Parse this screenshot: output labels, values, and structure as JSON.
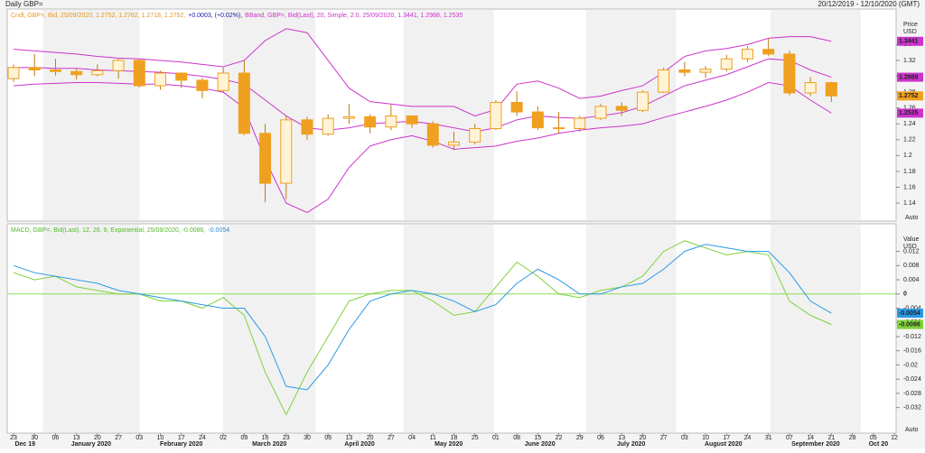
{
  "header": {
    "title": "Daily GBP=",
    "range": "20/12/2019 - 12/10/2020 (GMT)"
  },
  "chart_data": [
    {
      "type": "candlestick",
      "legend": [
        {
          "text": "Cndl, GBP=, Bid, 25/09/2020, 1.2752, 1.2762, 1.2718, 1.2752,",
          "color": "#e8961a"
        },
        {
          "text": "+0.0003, (+0.02%),",
          "color": "#1a1aa6"
        },
        {
          "text": "BBand, GBP=, Bid(Last), 20, Simple, 2.0, 25/09/2020, 1.3441, 1.2988, 1.2535",
          "color": "#cc33cc"
        }
      ],
      "y_label": "Price",
      "y_unit": "USD",
      "button": "Auto",
      "categories": [
        "23",
        "30",
        "06",
        "13",
        "20",
        "27",
        "03",
        "10",
        "17",
        "24",
        "02",
        "09",
        "16",
        "23",
        "30",
        "06",
        "13",
        "20",
        "27",
        "04",
        "11",
        "18",
        "25",
        "01",
        "08",
        "15",
        "22",
        "29",
        "06",
        "13",
        "20",
        "27",
        "03",
        "10",
        "17",
        "24",
        "31",
        "07",
        "14",
        "21",
        "28",
        "05",
        "12"
      ],
      "months": [
        "Dec 19",
        "January 2020",
        "February 2020",
        "March 2020",
        "April 2020",
        "May 2020",
        "June 2020",
        "July 2020",
        "August 2020",
        "September 2020",
        "Oct 20"
      ],
      "open": [
        1.297,
        1.311,
        1.308,
        1.306,
        1.302,
        1.307,
        1.32,
        1.288,
        1.304,
        1.295,
        1.282,
        1.304,
        1.228,
        1.165,
        1.245,
        1.227,
        1.247,
        1.249,
        1.236,
        1.25,
        1.24,
        1.213,
        1.217,
        1.234,
        1.267,
        1.255,
        1.235,
        1.234,
        1.247,
        1.262,
        1.257,
        1.28,
        1.308,
        1.305,
        1.309,
        1.322,
        1.334,
        1.328,
        1.279,
        1.292,
        null,
        null,
        null
      ],
      "high": [
        1.315,
        1.328,
        1.322,
        1.31,
        1.315,
        1.322,
        1.322,
        1.307,
        1.305,
        1.298,
        1.311,
        1.32,
        1.24,
        1.25,
        1.249,
        1.252,
        1.265,
        1.252,
        1.264,
        1.25,
        1.243,
        1.23,
        1.24,
        1.27,
        1.281,
        1.262,
        1.255,
        1.25,
        1.265,
        1.267,
        1.282,
        1.311,
        1.318,
        1.313,
        1.327,
        1.338,
        1.348,
        1.332,
        1.299,
        1.293,
        null,
        null,
        null
      ],
      "low": [
        1.293,
        1.3,
        1.301,
        1.296,
        1.3,
        1.297,
        1.286,
        1.283,
        1.285,
        1.272,
        1.28,
        1.226,
        1.141,
        1.145,
        1.22,
        1.225,
        1.24,
        1.228,
        1.232,
        1.235,
        1.21,
        1.207,
        1.214,
        1.232,
        1.25,
        1.232,
        1.228,
        1.23,
        1.245,
        1.25,
        1.255,
        1.279,
        1.3,
        1.298,
        1.306,
        1.318,
        1.325,
        1.276,
        1.275,
        1.2675,
        null,
        null,
        null
      ],
      "close": [
        1.311,
        1.308,
        1.306,
        1.302,
        1.307,
        1.32,
        1.288,
        1.304,
        1.295,
        1.282,
        1.304,
        1.228,
        1.165,
        1.245,
        1.227,
        1.247,
        1.249,
        1.236,
        1.25,
        1.24,
        1.213,
        1.217,
        1.234,
        1.267,
        1.255,
        1.235,
        1.234,
        1.247,
        1.262,
        1.257,
        1.28,
        1.308,
        1.305,
        1.309,
        1.322,
        1.334,
        1.328,
        1.279,
        1.292,
        1.2752,
        null,
        null,
        null
      ],
      "candle_color": "#f0a020",
      "series": [
        {
          "name": "BBand upper",
          "color": "#cc33cc",
          "values": [
            1.334,
            1.332,
            1.33,
            1.328,
            1.325,
            1.323,
            1.322,
            1.32,
            1.318,
            1.315,
            1.312,
            1.32,
            1.345,
            1.36,
            1.355,
            1.32,
            1.285,
            1.268,
            1.265,
            1.262,
            1.262,
            1.262,
            1.25,
            1.258,
            1.29,
            1.294,
            1.285,
            1.272,
            1.275,
            1.282,
            1.288,
            1.305,
            1.325,
            1.332,
            1.335,
            1.34,
            1.348,
            1.35,
            1.35,
            1.3441,
            null,
            null,
            null
          ]
        },
        {
          "name": "BBand middle",
          "color": "#cc33cc",
          "values": [
            1.311,
            1.311,
            1.31,
            1.31,
            1.308,
            1.307,
            1.306,
            1.305,
            1.303,
            1.3,
            1.296,
            1.29,
            1.27,
            1.25,
            1.235,
            1.232,
            1.235,
            1.24,
            1.242,
            1.243,
            1.24,
            1.235,
            1.23,
            1.235,
            1.245,
            1.25,
            1.248,
            1.247,
            1.25,
            1.254,
            1.262,
            1.275,
            1.288,
            1.295,
            1.302,
            1.312,
            1.322,
            1.32,
            1.308,
            1.2988,
            null,
            null,
            null
          ]
        },
        {
          "name": "BBand lower",
          "color": "#cc33cc",
          "values": [
            1.288,
            1.29,
            1.291,
            1.292,
            1.292,
            1.291,
            1.29,
            1.29,
            1.288,
            1.285,
            1.28,
            1.26,
            1.195,
            1.14,
            1.128,
            1.145,
            1.185,
            1.212,
            1.22,
            1.225,
            1.218,
            1.208,
            1.21,
            1.212,
            1.218,
            1.222,
            1.228,
            1.232,
            1.235,
            1.237,
            1.24,
            1.248,
            1.255,
            1.262,
            1.27,
            1.28,
            1.292,
            1.288,
            1.27,
            1.2535,
            null,
            null,
            null
          ]
        }
      ],
      "tags": [
        {
          "value": 1.3441,
          "color": "#cc33cc"
        },
        {
          "value": 1.2988,
          "color": "#cc33cc"
        },
        {
          "value": 1.2752,
          "color": "#f0a020"
        },
        {
          "value": 1.2535,
          "color": "#cc33cc"
        }
      ],
      "ylim": [
        1.123,
        1.378
      ],
      "yticks": [
        1.14,
        1.16,
        1.18,
        1.2,
        1.22,
        1.24,
        1.26,
        1.28,
        1.3,
        1.32,
        1.34
      ]
    },
    {
      "type": "line",
      "legend": [
        {
          "text": "MACD, GBP=, Bid(Last), 12, 26, 9, Exponential, 25/09/2020, -0.0086,",
          "color": "#55b82a"
        },
        {
          "text": "-0.0054",
          "color": "#2a8ad6"
        }
      ],
      "y_label": "Value",
      "y_unit": "USD",
      "button": "Auto",
      "series": [
        {
          "name": "MACD",
          "color": "#7ed23a",
          "values": [
            0.006,
            0.004,
            0.005,
            0.002,
            0.001,
            0.0,
            0.0,
            -0.002,
            -0.002,
            -0.004,
            -0.001,
            -0.006,
            -0.022,
            -0.034,
            -0.022,
            -0.012,
            -0.002,
            0.0,
            0.001,
            0.001,
            -0.002,
            -0.006,
            -0.005,
            0.002,
            0.009,
            0.005,
            0.0,
            -0.001,
            0.001,
            0.002,
            0.005,
            0.012,
            0.015,
            0.013,
            0.011,
            0.012,
            0.011,
            -0.002,
            -0.006,
            -0.0086,
            null,
            null,
            null
          ]
        },
        {
          "name": "Signal",
          "color": "#2a9ae6",
          "values": [
            0.008,
            0.006,
            0.005,
            0.004,
            0.003,
            0.001,
            0.0,
            -0.001,
            -0.002,
            -0.003,
            -0.004,
            -0.004,
            -0.012,
            -0.026,
            -0.027,
            -0.02,
            -0.01,
            -0.002,
            0.0,
            0.001,
            0.0,
            -0.002,
            -0.005,
            -0.003,
            0.003,
            0.007,
            0.004,
            0.0,
            0.0,
            0.002,
            0.003,
            0.007,
            0.012,
            0.014,
            0.013,
            0.012,
            0.012,
            0.006,
            -0.002,
            -0.0054,
            null,
            null,
            null
          ]
        }
      ],
      "zero_line_color": "#8ddc55",
      "tags": [
        {
          "value": -0.0054,
          "color": "#2a9ae6"
        },
        {
          "value": -0.0086,
          "color": "#7ed23a"
        }
      ],
      "ylim": [
        -0.0387,
        0.018
      ],
      "yticks": [
        -0.032,
        -0.028,
        -0.024,
        -0.02,
        -0.016,
        -0.012,
        -0.008,
        -0.004,
        0,
        0.004,
        0.008,
        0.012
      ]
    }
  ]
}
